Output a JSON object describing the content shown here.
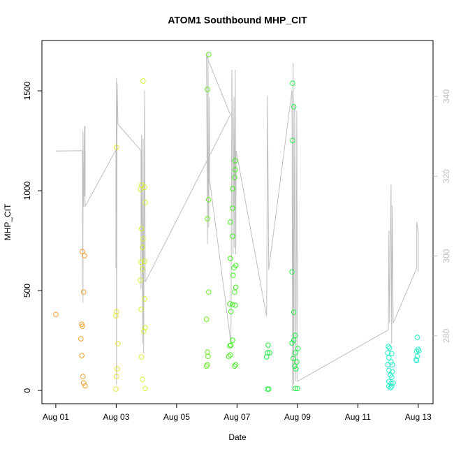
{
  "chart_data": {
    "type": "scatter",
    "title": "ATOM1 Southbound MHP_CIT",
    "xlabel": "Date",
    "ylabel": "MHP_CIT",
    "xlim": [
      -0.46,
      12.49
    ],
    "xticks": [
      {
        "value": 0,
        "label": "Aug 01"
      },
      {
        "value": 2,
        "label": "Aug 03"
      },
      {
        "value": 4,
        "label": "Aug 05"
      },
      {
        "value": 6,
        "label": "Aug 07"
      },
      {
        "value": 8,
        "label": "Aug 09"
      },
      {
        "value": 10,
        "label": "Aug 11"
      },
      {
        "value": 12,
        "label": "Aug 13"
      }
    ],
    "ylim": [
      -66,
      1752
    ],
    "yticks": [
      0,
      500,
      1000,
      1500
    ],
    "y2lim": [
      263,
      354
    ],
    "y2ticks": [
      280,
      300,
      320,
      340
    ],
    "y2color": "#bebebe",
    "series": [
      {
        "color": "#f0a030",
        "x": [
          0,
          0.88,
          0.95,
          0.92,
          0.86,
          0.88,
          0.83,
          0.86,
          0.9,
          0.92,
          0.97
        ],
        "values": [
          381,
          696,
          675,
          493,
          332,
          322,
          259,
          175,
          70,
          38,
          24
        ]
      },
      {
        "color": "#e6e633",
        "x": [
          2.01,
          2.01,
          1.99,
          2.06,
          2.03,
          2.01,
          1.99
        ],
        "values": [
          1217,
          395,
          374,
          234,
          108,
          70,
          7
        ]
      },
      {
        "color": "#d8f030",
        "x": [
          2.89,
          2.84,
          2.94,
          2.8,
          2.96,
          2.84,
          2.89,
          2.87,
          2.82,
          2.94,
          2.87,
          2.8,
          2.94,
          2.96,
          2.91,
          2.82,
          2.84,
          2.87,
          2.96
        ],
        "values": [
          1549,
          1028,
          1017,
          1007,
          941,
          811,
          759,
          717,
          643,
          647,
          608,
          552,
          458,
          315,
          297,
          406,
          168,
          56,
          10
        ]
      },
      {
        "color": "#66ee22",
        "x": [
          5.06,
          5.02,
          5.06,
          5.02,
          5.06,
          4.99,
          5.02,
          5.04,
          5.02,
          4.99
        ],
        "values": [
          1682,
          1507,
          955,
          860,
          493,
          357,
          192,
          171,
          129,
          122
        ]
      },
      {
        "color": "#44ee22",
        "x": [
          5.94,
          5.94,
          5.92,
          5.85,
          5.85,
          5.78,
          5.85,
          5.78,
          5.96,
          5.9,
          5.87,
          5.96,
          5.92,
          5.76,
          5.85,
          5.94,
          5.8,
          5.85,
          5.8,
          5.76,
          5.78,
          5.73,
          5.96,
          5.92
        ],
        "values": [
          1150,
          1105,
          1066,
          1010,
          913,
          843,
          773,
          661,
          626,
          615,
          577,
          517,
          493,
          434,
          430,
          427,
          395,
          252,
          227,
          224,
          178,
          171,
          129,
          122
        ]
      },
      {
        "color": "#22ee44",
        "x": [
          7.03,
          7.01,
          7.08,
          6.98,
          7.01,
          7.05,
          7.84,
          7.88,
          7.84,
          7.82,
          7.88,
          7.93,
          7.88,
          7.82,
          8.02,
          7.93,
          7.86,
          7.98,
          7.91,
          7.95,
          7.93,
          8.0
        ],
        "values": [
          227,
          189,
          189,
          168,
          7,
          7,
          1538,
          1420,
          1252,
          594,
          392,
          276,
          252,
          238,
          210,
          189,
          161,
          143,
          122,
          108,
          10,
          10
        ]
      },
      {
        "color": "#22eec8",
        "x": [
          11.01,
          11.05,
          10.99,
          11.12,
          11.03,
          11.1,
          10.99,
          11.14,
          11.03,
          11.14,
          11.08,
          11.12,
          11.03,
          11.1,
          11.17,
          11.12,
          11.08,
          11.03,
          11.97,
          11.99,
          11.95,
          12.02,
          11.97,
          11.93,
          11.95
        ],
        "values": [
          220,
          213,
          189,
          185,
          164,
          143,
          129,
          129,
          101,
          94,
          77,
          66,
          45,
          35,
          38,
          21,
          14,
          21,
          266,
          206,
          196,
          199,
          171,
          154,
          150
        ]
      },
      {
        "type": "line",
        "axis": "y2",
        "color": "#bebebe",
        "x": [
          0,
          0.88,
          0.9,
          0.9,
          0.92,
          0.95,
          0.95,
          0.97,
          0.97,
          1.99,
          1.99,
          2.01,
          2.01,
          2.03,
          2.06,
          2.82,
          2.82,
          2.84,
          2.87,
          2.89,
          2.91,
          2.94,
          2.96,
          5.78,
          4.99,
          5.02,
          5.04,
          5.06,
          5.09,
          5.09,
          5.8,
          5.83,
          5.87,
          5.9,
          5.92,
          5.94,
          5.96,
          5.97,
          6.98,
          7.01,
          7.05,
          7.82,
          7.84,
          7.86,
          7.88,
          7.91,
          7.95,
          7.98,
          8.0,
          11.01,
          11.03,
          11.05,
          11.1,
          11.12,
          11.14,
          11.17,
          11.95,
          11.95,
          12.0,
          12.0
        ],
        "values": [
          326.3,
          326.4,
          288.4,
          331.3,
          312.4,
          332.5,
          315.0,
          332.6,
          312.4,
          326.6,
          297.0,
          344.6,
          267.8,
          343.3,
          333.0,
          326.4,
          291.8,
          330.4,
          278.1,
          329.5,
          275.5,
          341.5,
          293.5,
          335.4,
          350.1,
          303.0,
          351.0,
          307.2,
          339.8,
          319.2,
          278.1,
          346.7,
          300.4,
          339.8,
          302.1,
          346.7,
          300.4,
          326.4,
          284.9,
          340.2,
          296.6,
          341.5,
          266.1,
          348.4,
          267.8,
          338.1,
          268.6,
          336.4,
          268.6,
          281.5,
          306.4,
          283.2,
          317.9,
          278.1,
          312.7,
          283.2,
          297.0,
          308.6,
          306.0,
          296.1
        ]
      }
    ]
  }
}
